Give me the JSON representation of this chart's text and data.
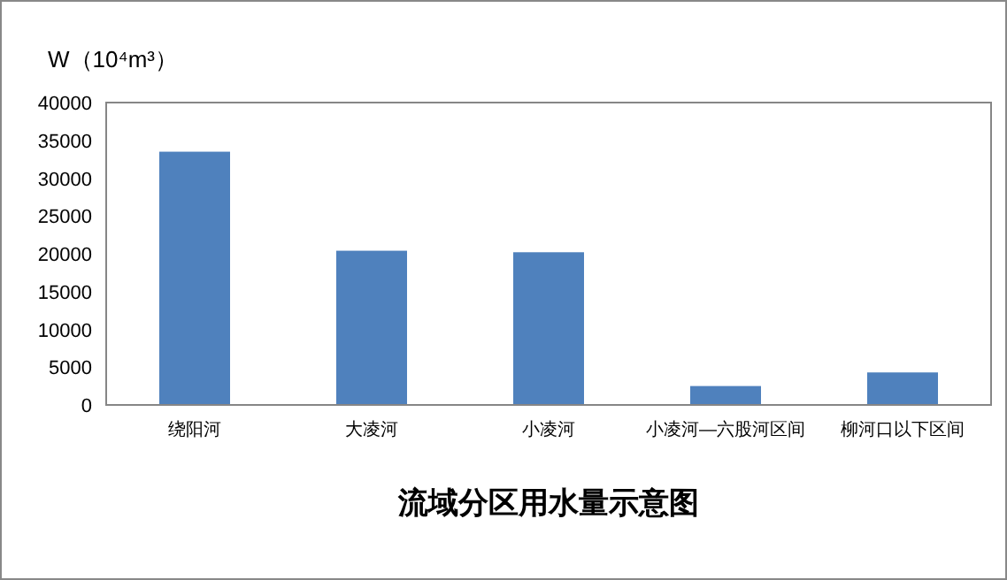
{
  "chart_data": {
    "type": "bar",
    "title": "流域分区用水量示意图",
    "ylabel": "W（10⁴m³）",
    "categories": [
      "绕阳河",
      "大凌河",
      "小凌河",
      "小凌河—六股河区间",
      "柳河口以下区间"
    ],
    "values": [
      33500,
      20400,
      20200,
      2500,
      4300
    ],
    "color": "#4f81bd",
    "ylim": [
      0,
      40000
    ],
    "yticks": [
      0,
      5000,
      10000,
      15000,
      20000,
      25000,
      30000,
      35000,
      40000
    ],
    "grid": false
  }
}
